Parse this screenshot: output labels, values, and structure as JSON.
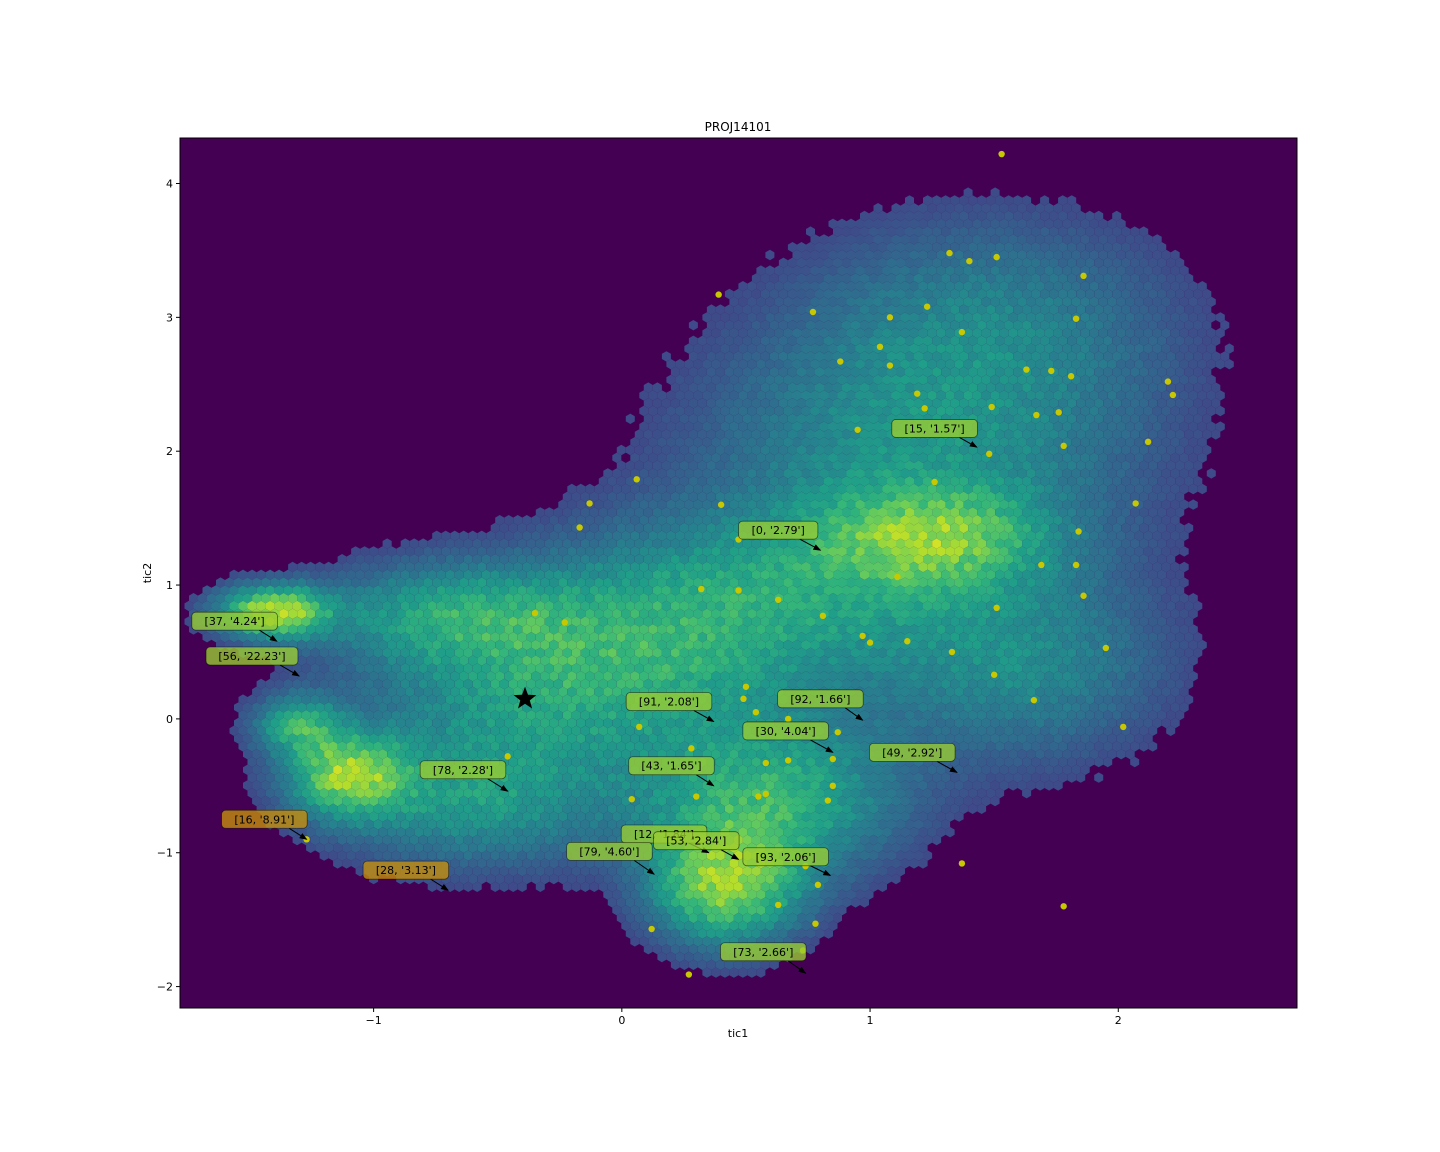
{
  "chart_data": {
    "type": "scatter",
    "title": "PROJ14101",
    "xlabel": "tic1",
    "ylabel": "tic2",
    "xlim": [
      -1.78,
      2.72
    ],
    "ylim": [
      -2.16,
      4.34
    ],
    "xticks": [
      -1,
      0,
      1,
      2
    ],
    "yticks": [
      -2,
      -1,
      0,
      1,
      2,
      3,
      4
    ],
    "xtick_labels": [
      "−1",
      "0",
      "1",
      "2"
    ],
    "ytick_labels": [
      "−2",
      "−1",
      "0",
      "1",
      "2",
      "3",
      "4"
    ],
    "colors": {
      "background": "#440154",
      "points": "#c8c800",
      "annotation_green": "#9acd32",
      "annotation_orange": "#c8900a",
      "star": "#000000"
    },
    "density_clusters": [
      {
        "x": -1.4,
        "y": 0.8,
        "sx": 0.15,
        "sy": 0.13,
        "w": 1.0
      },
      {
        "x": -1.1,
        "y": -0.42,
        "sx": 0.16,
        "sy": 0.2,
        "w": 0.82
      },
      {
        "x": -1.3,
        "y": -0.05,
        "sx": 0.12,
        "sy": 0.15,
        "w": 0.55
      },
      {
        "x": -0.2,
        "y": 0.3,
        "sx": 0.55,
        "sy": 0.45,
        "w": 0.55
      },
      {
        "x": -0.6,
        "y": -0.6,
        "sx": 0.4,
        "sy": 0.35,
        "w": 0.45
      },
      {
        "x": 0.42,
        "y": -1.25,
        "sx": 0.2,
        "sy": 0.3,
        "w": 0.85
      },
      {
        "x": 0.6,
        "y": -0.6,
        "sx": 0.35,
        "sy": 0.4,
        "w": 0.6
      },
      {
        "x": 1.25,
        "y": 1.35,
        "sx": 0.3,
        "sy": 0.25,
        "w": 0.6
      },
      {
        "x": 1.2,
        "y": 2.0,
        "sx": 0.6,
        "sy": 0.7,
        "w": 0.4
      },
      {
        "x": 1.5,
        "y": 3.0,
        "sx": 0.5,
        "sy": 0.55,
        "w": 0.25
      },
      {
        "x": 0.5,
        "y": 0.9,
        "sx": 0.55,
        "sy": 0.45,
        "w": 0.45
      },
      {
        "x": 1.6,
        "y": 0.4,
        "sx": 0.4,
        "sy": 0.5,
        "w": 0.35
      },
      {
        "x": -0.7,
        "y": 0.8,
        "sx": 0.35,
        "sy": 0.25,
        "w": 0.4
      }
    ],
    "points": [
      [
        1.53,
        4.22
      ],
      [
        1.32,
        3.48
      ],
      [
        1.4,
        3.42
      ],
      [
        1.51,
        3.45
      ],
      [
        1.86,
        3.31
      ],
      [
        0.39,
        3.17
      ],
      [
        0.77,
        3.04
      ],
      [
        1.08,
        3.0
      ],
      [
        1.23,
        3.08
      ],
      [
        1.37,
        2.89
      ],
      [
        1.83,
        2.99
      ],
      [
        1.04,
        2.78
      ],
      [
        0.88,
        2.67
      ],
      [
        1.08,
        2.64
      ],
      [
        1.63,
        2.61
      ],
      [
        1.73,
        2.6
      ],
      [
        1.81,
        2.56
      ],
      [
        2.2,
        2.52
      ],
      [
        2.22,
        2.42
      ],
      [
        1.19,
        2.43
      ],
      [
        1.22,
        2.32
      ],
      [
        1.49,
        2.33
      ],
      [
        1.67,
        2.27
      ],
      [
        1.76,
        2.29
      ],
      [
        0.95,
        2.16
      ],
      [
        2.12,
        2.07
      ],
      [
        1.78,
        2.04
      ],
      [
        1.48,
        1.98
      ],
      [
        0.06,
        1.79
      ],
      [
        1.26,
        1.77
      ],
      [
        -0.13,
        1.61
      ],
      [
        0.4,
        1.6
      ],
      [
        2.07,
        1.61
      ],
      [
        -0.17,
        1.43
      ],
      [
        0.47,
        1.34
      ],
      [
        1.84,
        1.4
      ],
      [
        1.69,
        1.15
      ],
      [
        1.83,
        1.15
      ],
      [
        1.11,
        1.06
      ],
      [
        0.32,
        0.97
      ],
      [
        0.47,
        0.96
      ],
      [
        0.63,
        0.89
      ],
      [
        1.86,
        0.92
      ],
      [
        -0.35,
        0.79
      ],
      [
        0.81,
        0.77
      ],
      [
        1.51,
        0.83
      ],
      [
        -0.23,
        0.72
      ],
      [
        0.97,
        0.62
      ],
      [
        1.0,
        0.57
      ],
      [
        1.15,
        0.58
      ],
      [
        1.33,
        0.5
      ],
      [
        1.95,
        0.53
      ],
      [
        1.5,
        0.33
      ],
      [
        0.5,
        0.24
      ],
      [
        0.49,
        0.15
      ],
      [
        0.54,
        0.05
      ],
      [
        0.67,
        0.0
      ],
      [
        1.66,
        0.14
      ],
      [
        0.07,
        -0.06
      ],
      [
        0.87,
        -0.1
      ],
      [
        2.02,
        -0.06
      ],
      [
        0.28,
        -0.22
      ],
      [
        0.85,
        -0.3
      ],
      [
        -0.46,
        -0.28
      ],
      [
        0.58,
        -0.33
      ],
      [
        0.67,
        -0.31
      ],
      [
        0.85,
        -0.5
      ],
      [
        0.3,
        -0.58
      ],
      [
        0.55,
        -0.58
      ],
      [
        0.58,
        -0.56
      ],
      [
        0.04,
        -0.6
      ],
      [
        0.83,
        -0.61
      ],
      [
        -1.27,
        -0.9
      ],
      [
        0.79,
        -1.24
      ],
      [
        0.63,
        -1.39
      ],
      [
        1.37,
        -1.08
      ],
      [
        0.74,
        -1.1
      ],
      [
        1.78,
        -1.4
      ],
      [
        0.12,
        -1.57
      ],
      [
        0.78,
        -1.53
      ],
      [
        0.73,
        -1.73
      ],
      [
        0.27,
        -1.91
      ]
    ],
    "star": {
      "x": -0.39,
      "y": 0.15
    },
    "annotations": [
      {
        "label": "[15, '1.57']",
        "x": 1.43,
        "y": 2.03,
        "lx": 1.26,
        "ly": 2.17,
        "color": "green"
      },
      {
        "label": "[0, '2.79']",
        "x": 0.8,
        "y": 1.26,
        "lx": 0.63,
        "ly": 1.41,
        "color": "green"
      },
      {
        "label": "[37, '4.24']",
        "x": -1.39,
        "y": 0.58,
        "lx": -1.56,
        "ly": 0.73,
        "color": "green"
      },
      {
        "label": "[56, '22.23']",
        "x": -1.3,
        "y": 0.32,
        "lx": -1.49,
        "ly": 0.47,
        "color": "green"
      },
      {
        "label": "[91, '2.08']",
        "x": 0.37,
        "y": -0.02,
        "lx": 0.19,
        "ly": 0.13,
        "color": "green"
      },
      {
        "label": "[92, '1.66']",
        "x": 0.97,
        "y": -0.01,
        "lx": 0.8,
        "ly": 0.15,
        "color": "green"
      },
      {
        "label": "[30, '4.04']",
        "x": 0.85,
        "y": -0.25,
        "lx": 0.66,
        "ly": -0.09,
        "color": "green"
      },
      {
        "label": "[49, '2.92']",
        "x": 1.35,
        "y": -0.4,
        "lx": 1.17,
        "ly": -0.25,
        "color": "green"
      },
      {
        "label": "[78, '2.28']",
        "x": -0.46,
        "y": -0.54,
        "lx": -0.64,
        "ly": -0.38,
        "color": "green"
      },
      {
        "label": "[43, '1.65']",
        "x": 0.37,
        "y": -0.5,
        "lx": 0.2,
        "ly": -0.35,
        "color": "green"
      },
      {
        "label": "[16, '8.91']",
        "x": -1.27,
        "y": -0.9,
        "lx": -1.44,
        "ly": -0.75,
        "color": "orange"
      },
      {
        "label": "[12, '1.84']",
        "x": 0.35,
        "y": -1.0,
        "lx": 0.17,
        "ly": -0.86,
        "color": "green"
      },
      {
        "label": "[53, '2.84']",
        "x": 0.47,
        "y": -1.05,
        "lx": 0.3,
        "ly": -0.91,
        "color": "green"
      },
      {
        "label": "[79, '4.60']",
        "x": 0.13,
        "y": -1.16,
        "lx": -0.05,
        "ly": -0.99,
        "color": "green"
      },
      {
        "label": "[93, '2.06']",
        "x": 0.84,
        "y": -1.17,
        "lx": 0.66,
        "ly": -1.03,
        "color": "green"
      },
      {
        "label": "[28, '3.13']",
        "x": -0.7,
        "y": -1.28,
        "lx": -0.87,
        "ly": -1.13,
        "color": "orange"
      },
      {
        "label": "[73, '2.66']",
        "x": 0.74,
        "y": -1.9,
        "lx": 0.57,
        "ly": -1.74,
        "color": "green"
      }
    ]
  }
}
